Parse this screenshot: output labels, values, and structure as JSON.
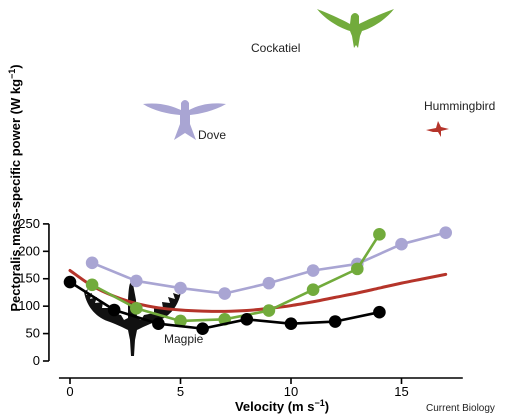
{
  "chart_data": {
    "type": "line",
    "xlabel": "Velocity (m s",
    "xlabel_sup": "−1",
    "xlabel_end": ")",
    "ylabel": "Pectoralis mass-specific power (W kg",
    "ylabel_sup": "−1",
    "ylabel_end": ")",
    "xlim": [
      -0.5,
      18
    ],
    "ylim": [
      0,
      250
    ],
    "x_ticks": [
      0,
      5,
      10,
      15
    ],
    "y_ticks": [
      0,
      50,
      100,
      150,
      200,
      250
    ],
    "grid": false,
    "credit": "Current Biology",
    "series": [
      {
        "name": "Dove",
        "color": "#a9a5d3",
        "marker": "circle",
        "icon": "dove-silhouette",
        "x": [
          1,
          3,
          5,
          7,
          9,
          11,
          13,
          15,
          17
        ],
        "y": [
          179,
          146,
          133,
          123,
          142,
          165,
          177,
          213,
          234
        ]
      },
      {
        "name": "Cockatiel",
        "color": "#72ab3c",
        "marker": "circle",
        "icon": "cockatiel-silhouette",
        "x": [
          1,
          3,
          5,
          7,
          9,
          11,
          13,
          14
        ],
        "y": [
          139,
          96,
          73,
          76,
          92,
          130,
          168,
          231
        ]
      },
      {
        "name": "Magpie",
        "color": "#000000",
        "marker": "circle",
        "icon": "magpie-silhouette",
        "x": [
          0,
          2,
          4,
          6,
          8,
          10,
          12,
          14
        ],
        "y": [
          144,
          93,
          68,
          59,
          76,
          68,
          72,
          89
        ]
      },
      {
        "name": "Hummingbird",
        "color": "#b5342a",
        "marker": "none",
        "icon": "hummingbird-silhouette",
        "x": [
          0,
          1,
          2,
          3,
          4,
          5,
          6,
          7,
          8,
          9,
          10,
          11,
          12,
          13,
          14,
          15,
          16,
          17
        ],
        "y": [
          165,
          137,
          118,
          105,
          97,
          93,
          91,
          90.5,
          92,
          96,
          101,
          108,
          116,
          124,
          133,
          142,
          150,
          158
        ]
      }
    ]
  }
}
